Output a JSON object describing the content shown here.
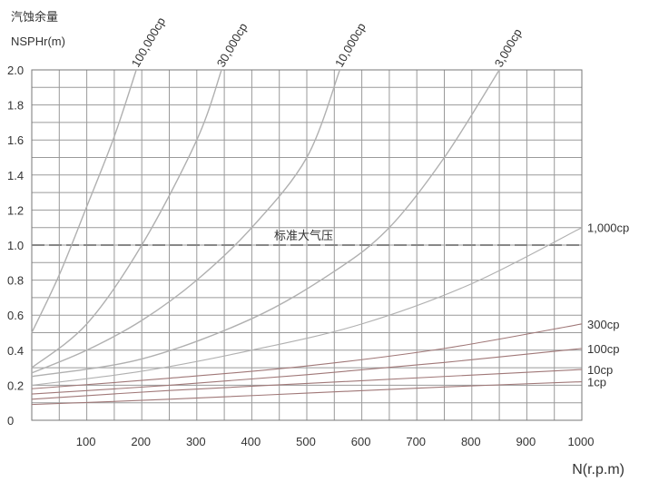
{
  "chart_data": {
    "type": "line",
    "ylabel_cn": "汽蚀余量",
    "ylabel": "NSPHr(m)",
    "xlabel": "N(r.p.m)",
    "xlim": [
      0,
      1000
    ],
    "ylim": [
      0,
      2.0
    ],
    "x_ticks": [
      100,
      200,
      300,
      400,
      500,
      600,
      700,
      800,
      900,
      1000
    ],
    "x_tick_labels": [
      "100",
      "200",
      "300",
      "400",
      "500",
      "600",
      "700",
      "800",
      "900",
      "1000"
    ],
    "y_ticks": [
      0,
      0.2,
      0.4,
      0.6,
      0.8,
      1.0,
      1.2,
      1.4,
      1.6,
      1.8,
      2.0
    ],
    "y_tick_labels": [
      "0",
      "0.2",
      "0.4",
      "0.6",
      "0.8",
      "1.0",
      "1.2",
      "1.4",
      "1.6",
      "1.8",
      "2.0"
    ],
    "grid": true,
    "reference_line": {
      "y": 1.0,
      "label": "标准大气压"
    },
    "colors": {
      "grid": "#9a9a9a",
      "viscous": "#b0b0b0",
      "light": "#a07878"
    },
    "series": [
      {
        "name": "100,000cp",
        "x": [
          0,
          50,
          100,
          150,
          190
        ],
        "y": [
          0.5,
          0.83,
          1.22,
          1.62,
          2.0
        ]
      },
      {
        "name": "30,000cp",
        "x": [
          0,
          100,
          200,
          300,
          345
        ],
        "y": [
          0.3,
          0.55,
          1.0,
          1.6,
          2.0
        ]
      },
      {
        "name": "10,000cp",
        "x": [
          0,
          100,
          200,
          300,
          400,
          500,
          560
        ],
        "y": [
          0.27,
          0.4,
          0.57,
          0.8,
          1.1,
          1.5,
          2.0
        ]
      },
      {
        "name": "3,000cp",
        "x": [
          0,
          200,
          400,
          550,
          650,
          750,
          850
        ],
        "y": [
          0.25,
          0.35,
          0.58,
          0.85,
          1.1,
          1.5,
          2.0
        ]
      },
      {
        "name": "1,000cp",
        "x": [
          0,
          200,
          400,
          600,
          800,
          1000
        ],
        "y": [
          0.2,
          0.28,
          0.4,
          0.55,
          0.78,
          1.1
        ]
      },
      {
        "name": "300cp",
        "x": [
          0,
          250,
          500,
          750,
          1000
        ],
        "y": [
          0.18,
          0.24,
          0.31,
          0.41,
          0.55
        ]
      },
      {
        "name": "100cp",
        "x": [
          0,
          250,
          500,
          750,
          1000
        ],
        "y": [
          0.15,
          0.2,
          0.26,
          0.33,
          0.41
        ]
      },
      {
        "name": "10cp",
        "x": [
          0,
          250,
          500,
          750,
          1000
        ],
        "y": [
          0.12,
          0.17,
          0.21,
          0.25,
          0.29
        ]
      },
      {
        "name": "1cp",
        "x": [
          0,
          250,
          500,
          750,
          1000
        ],
        "y": [
          0.09,
          0.12,
          0.155,
          0.19,
          0.22
        ]
      }
    ]
  }
}
